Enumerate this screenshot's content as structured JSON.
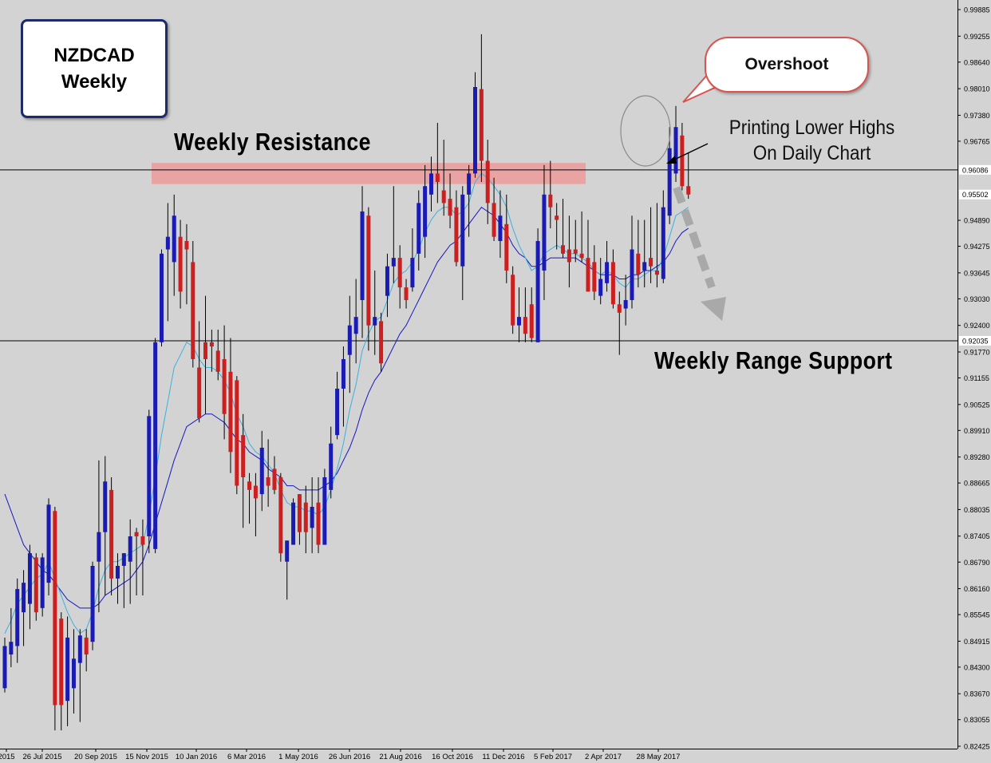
{
  "annotations": {
    "title_line1": "NZDCAD",
    "title_line2": "Weekly",
    "resistance": "Weekly Resistance",
    "support": "Weekly Range Support",
    "overshoot": "Overshoot",
    "lower_highs_line1": "Printing  Lower Highs",
    "lower_highs_line2": "On  Daily Chart"
  },
  "colors": {
    "background": "#d3d3d3",
    "bull_candle": "#1a1ab4",
    "bear_candle": "#cc1f1f",
    "resistance_zone": "#eba0a0",
    "ma_fast": "#3ab0e0",
    "ma_slow": "#1818c0",
    "horizontal_lines": "#000000",
    "callout_border": "#d9534f",
    "forecast_arrow": "#a9a9a9"
  },
  "chart_data": {
    "type": "candlestick",
    "symbol": "NZDCAD",
    "timeframe": "Weekly",
    "ylim": [
      0.82425,
      0.99885
    ],
    "y_ticks": [
      "0.99885",
      "0.99255",
      "0.98640",
      "0.98010",
      "0.97380",
      "0.96765",
      "0.96086",
      "0.95502",
      "0.94890",
      "0.94275",
      "0.93645",
      "0.93030",
      "0.92400",
      "0.91770",
      "0.91155",
      "0.90525",
      "0.89910",
      "0.89280",
      "0.88665",
      "0.88035",
      "0.87405",
      "0.86790",
      "0.86160",
      "0.85545",
      "0.84915",
      "0.84300",
      "0.83670",
      "0.83055",
      "0.82425"
    ],
    "highlighted_price_labels": [
      "0.96086",
      "0.95502",
      "0.92035"
    ],
    "x_tick_labels": [
      "2015",
      "26 Jul 2015",
      "20 Sep 2015",
      "15 Nov 2015",
      "10 Jan 2016",
      "6 Mar 2016",
      "1 May 2016",
      "26 Jun 2016",
      "21 Aug 2016",
      "16 Oct 2016",
      "11 Dec 2016",
      "5 Feb 2017",
      "2 Apr 2017",
      "28 May 2017"
    ],
    "horizontal_levels": [
      0.96086,
      0.92035
    ],
    "resistance_zone": [
      0.9575,
      0.9625
    ],
    "candles": [
      {
        "o": 0.838,
        "h": 0.85,
        "l": 0.837,
        "c": 0.848
      },
      {
        "o": 0.846,
        "h": 0.857,
        "l": 0.843,
        "c": 0.849
      },
      {
        "o": 0.848,
        "h": 0.864,
        "l": 0.844,
        "c": 0.8615
      },
      {
        "o": 0.856,
        "h": 0.866,
        "l": 0.848,
        "c": 0.863
      },
      {
        "o": 0.858,
        "h": 0.872,
        "l": 0.852,
        "c": 0.87
      },
      {
        "o": 0.869,
        "h": 0.87,
        "l": 0.854,
        "c": 0.856
      },
      {
        "o": 0.857,
        "h": 0.87,
        "l": 0.855,
        "c": 0.869
      },
      {
        "o": 0.863,
        "h": 0.883,
        "l": 0.86,
        "c": 0.8815
      },
      {
        "o": 0.88,
        "h": 0.881,
        "l": 0.828,
        "c": 0.834
      },
      {
        "o": 0.8545,
        "h": 0.856,
        "l": 0.828,
        "c": 0.834
      },
      {
        "o": 0.835,
        "h": 0.855,
        "l": 0.829,
        "c": 0.85
      },
      {
        "o": 0.838,
        "h": 0.852,
        "l": 0.832,
        "c": 0.845
      },
      {
        "o": 0.844,
        "h": 0.852,
        "l": 0.83,
        "c": 0.8505
      },
      {
        "o": 0.85,
        "h": 0.852,
        "l": 0.842,
        "c": 0.846
      },
      {
        "o": 0.849,
        "h": 0.868,
        "l": 0.847,
        "c": 0.867
      },
      {
        "o": 0.868,
        "h": 0.892,
        "l": 0.856,
        "c": 0.875
      },
      {
        "o": 0.875,
        "h": 0.893,
        "l": 0.86,
        "c": 0.887
      },
      {
        "o": 0.885,
        "h": 0.888,
        "l": 0.86,
        "c": 0.864
      },
      {
        "o": 0.864,
        "h": 0.87,
        "l": 0.858,
        "c": 0.867
      },
      {
        "o": 0.867,
        "h": 0.87,
        "l": 0.857,
        "c": 0.87
      },
      {
        "o": 0.868,
        "h": 0.878,
        "l": 0.858,
        "c": 0.874
      },
      {
        "o": 0.875,
        "h": 0.876,
        "l": 0.86,
        "c": 0.874
      },
      {
        "o": 0.874,
        "h": 0.878,
        "l": 0.86,
        "c": 0.872
      },
      {
        "o": 0.874,
        "h": 0.904,
        "l": 0.87,
        "c": 0.9025
      },
      {
        "o": 0.871,
        "h": 0.921,
        "l": 0.87,
        "c": 0.92
      },
      {
        "o": 0.92,
        "h": 0.942,
        "l": 0.919,
        "c": 0.941
      },
      {
        "o": 0.942,
        "h": 0.953,
        "l": 0.925,
        "c": 0.945
      },
      {
        "o": 0.939,
        "h": 0.955,
        "l": 0.931,
        "c": 0.95
      },
      {
        "o": 0.945,
        "h": 0.949,
        "l": 0.928,
        "c": 0.932
      },
      {
        "o": 0.944,
        "h": 0.948,
        "l": 0.929,
        "c": 0.942
      },
      {
        "o": 0.939,
        "h": 0.944,
        "l": 0.914,
        "c": 0.916
      },
      {
        "o": 0.914,
        "h": 0.925,
        "l": 0.901,
        "c": 0.902
      },
      {
        "o": 0.92,
        "h": 0.931,
        "l": 0.903,
        "c": 0.916
      },
      {
        "o": 0.92,
        "h": 0.923,
        "l": 0.913,
        "c": 0.919
      },
      {
        "o": 0.918,
        "h": 0.923,
        "l": 0.911,
        "c": 0.913
      },
      {
        "o": 0.916,
        "h": 0.924,
        "l": 0.897,
        "c": 0.903
      },
      {
        "o": 0.913,
        "h": 0.921,
        "l": 0.889,
        "c": 0.894
      },
      {
        "o": 0.911,
        "h": 0.912,
        "l": 0.884,
        "c": 0.886
      },
      {
        "o": 0.898,
        "h": 0.903,
        "l": 0.876,
        "c": 0.888
      },
      {
        "o": 0.887,
        "h": 0.889,
        "l": 0.877,
        "c": 0.885
      },
      {
        "o": 0.886,
        "h": 0.889,
        "l": 0.874,
        "c": 0.883
      },
      {
        "o": 0.884,
        "h": 0.899,
        "l": 0.88,
        "c": 0.895
      },
      {
        "o": 0.888,
        "h": 0.897,
        "l": 0.881,
        "c": 0.886
      },
      {
        "o": 0.89,
        "h": 0.893,
        "l": 0.884,
        "c": 0.885
      },
      {
        "o": 0.888,
        "h": 0.889,
        "l": 0.868,
        "c": 0.87
      },
      {
        "o": 0.868,
        "h": 0.873,
        "l": 0.859,
        "c": 0.873
      },
      {
        "o": 0.872,
        "h": 0.883,
        "l": 0.872,
        "c": 0.882
      },
      {
        "o": 0.884,
        "h": 0.884,
        "l": 0.872,
        "c": 0.875
      },
      {
        "o": 0.882,
        "h": 0.886,
        "l": 0.87,
        "c": 0.875
      },
      {
        "o": 0.876,
        "h": 0.888,
        "l": 0.87,
        "c": 0.881
      },
      {
        "o": 0.882,
        "h": 0.888,
        "l": 0.87,
        "c": 0.872
      },
      {
        "o": 0.872,
        "h": 0.89,
        "l": 0.872,
        "c": 0.888
      },
      {
        "o": 0.885,
        "h": 0.9,
        "l": 0.883,
        "c": 0.896
      },
      {
        "o": 0.898,
        "h": 0.913,
        "l": 0.897,
        "c": 0.909
      },
      {
        "o": 0.909,
        "h": 0.919,
        "l": 0.9,
        "c": 0.916
      },
      {
        "o": 0.917,
        "h": 0.931,
        "l": 0.908,
        "c": 0.924
      },
      {
        "o": 0.922,
        "h": 0.935,
        "l": 0.915,
        "c": 0.926
      },
      {
        "o": 0.93,
        "h": 0.957,
        "l": 0.921,
        "c": 0.951
      },
      {
        "o": 0.95,
        "h": 0.952,
        "l": 0.918,
        "c": 0.924
      },
      {
        "o": 0.924,
        "h": 0.937,
        "l": 0.917,
        "c": 0.926
      },
      {
        "o": 0.925,
        "h": 0.927,
        "l": 0.913,
        "c": 0.915
      },
      {
        "o": 0.931,
        "h": 0.941,
        "l": 0.926,
        "c": 0.938
      },
      {
        "o": 0.938,
        "h": 0.957,
        "l": 0.934,
        "c": 0.94
      },
      {
        "o": 0.94,
        "h": 0.943,
        "l": 0.928,
        "c": 0.933
      },
      {
        "o": 0.933,
        "h": 0.935,
        "l": 0.928,
        "c": 0.93
      },
      {
        "o": 0.933,
        "h": 0.947,
        "l": 0.932,
        "c": 0.94
      },
      {
        "o": 0.941,
        "h": 0.956,
        "l": 0.937,
        "c": 0.953
      },
      {
        "o": 0.945,
        "h": 0.962,
        "l": 0.94,
        "c": 0.957
      },
      {
        "o": 0.955,
        "h": 0.964,
        "l": 0.951,
        "c": 0.96
      },
      {
        "o": 0.96,
        "h": 0.972,
        "l": 0.953,
        "c": 0.958
      },
      {
        "o": 0.956,
        "h": 0.968,
        "l": 0.95,
        "c": 0.953
      },
      {
        "o": 0.954,
        "h": 0.96,
        "l": 0.947,
        "c": 0.95
      },
      {
        "o": 0.952,
        "h": 0.956,
        "l": 0.938,
        "c": 0.939
      },
      {
        "o": 0.938,
        "h": 0.957,
        "l": 0.93,
        "c": 0.955
      },
      {
        "o": 0.955,
        "h": 0.962,
        "l": 0.945,
        "c": 0.96
      },
      {
        "o": 0.96,
        "h": 0.984,
        "l": 0.959,
        "c": 0.9805
      },
      {
        "o": 0.98,
        "h": 0.993,
        "l": 0.958,
        "c": 0.963
      },
      {
        "o": 0.963,
        "h": 0.968,
        "l": 0.948,
        "c": 0.953
      },
      {
        "o": 0.953,
        "h": 0.959,
        "l": 0.944,
        "c": 0.945
      },
      {
        "o": 0.944,
        "h": 0.956,
        "l": 0.94,
        "c": 0.95
      },
      {
        "o": 0.948,
        "h": 0.955,
        "l": 0.934,
        "c": 0.937
      },
      {
        "o": 0.936,
        "h": 0.938,
        "l": 0.922,
        "c": 0.924
      },
      {
        "o": 0.924,
        "h": 0.933,
        "l": 0.92,
        "c": 0.926
      },
      {
        "o": 0.926,
        "h": 0.933,
        "l": 0.92,
        "c": 0.922
      },
      {
        "o": 0.929,
        "h": 0.933,
        "l": 0.92,
        "c": 0.921
      },
      {
        "o": 0.92,
        "h": 0.947,
        "l": 0.92,
        "c": 0.944
      },
      {
        "o": 0.937,
        "h": 0.962,
        "l": 0.93,
        "c": 0.955
      },
      {
        "o": 0.955,
        "h": 0.963,
        "l": 0.947,
        "c": 0.952
      },
      {
        "o": 0.95,
        "h": 0.953,
        "l": 0.942,
        "c": 0.949
      },
      {
        "o": 0.943,
        "h": 0.954,
        "l": 0.94,
        "c": 0.941
      },
      {
        "o": 0.942,
        "h": 0.95,
        "l": 0.933,
        "c": 0.939
      },
      {
        "o": 0.942,
        "h": 0.949,
        "l": 0.939,
        "c": 0.941
      },
      {
        "o": 0.941,
        "h": 0.951,
        "l": 0.939,
        "c": 0.94
      },
      {
        "o": 0.94,
        "h": 0.949,
        "l": 0.932,
        "c": 0.932
      },
      {
        "o": 0.939,
        "h": 0.943,
        "l": 0.93,
        "c": 0.932
      },
      {
        "o": 0.931,
        "h": 0.94,
        "l": 0.929,
        "c": 0.935
      },
      {
        "o": 0.934,
        "h": 0.944,
        "l": 0.932,
        "c": 0.939
      },
      {
        "o": 0.939,
        "h": 0.942,
        "l": 0.928,
        "c": 0.929
      },
      {
        "o": 0.929,
        "h": 0.932,
        "l": 0.917,
        "c": 0.927
      },
      {
        "o": 0.928,
        "h": 0.936,
        "l": 0.924,
        "c": 0.93
      },
      {
        "o": 0.93,
        "h": 0.95,
        "l": 0.928,
        "c": 0.942
      },
      {
        "o": 0.941,
        "h": 0.949,
        "l": 0.933,
        "c": 0.936
      },
      {
        "o": 0.937,
        "h": 0.949,
        "l": 0.933,
        "c": 0.939
      },
      {
        "o": 0.94,
        "h": 0.952,
        "l": 0.934,
        "c": 0.938
      },
      {
        "o": 0.937,
        "h": 0.953,
        "l": 0.933,
        "c": 0.936
      },
      {
        "o": 0.935,
        "h": 0.956,
        "l": 0.934,
        "c": 0.952
      },
      {
        "o": 0.95,
        "h": 0.971,
        "l": 0.948,
        "c": 0.966
      },
      {
        "o": 0.96,
        "h": 0.976,
        "l": 0.958,
        "c": 0.971
      },
      {
        "o": 0.969,
        "h": 0.972,
        "l": 0.956,
        "c": 0.957
      },
      {
        "o": 0.957,
        "h": 0.965,
        "l": 0.954,
        "c": 0.955
      }
    ],
    "ma_fast": [
      0.851,
      0.854,
      0.858,
      0.86,
      0.862,
      0.864,
      0.865,
      0.868,
      0.864,
      0.86,
      0.856,
      0.853,
      0.851,
      0.852,
      0.856,
      0.862,
      0.866,
      0.868,
      0.868,
      0.869,
      0.87,
      0.871,
      0.872,
      0.879,
      0.888,
      0.898,
      0.906,
      0.914,
      0.917,
      0.92,
      0.919,
      0.916,
      0.914,
      0.914,
      0.913,
      0.911,
      0.908,
      0.903,
      0.9,
      0.896,
      0.894,
      0.893,
      0.891,
      0.889,
      0.885,
      0.882,
      0.881,
      0.881,
      0.88,
      0.88,
      0.879,
      0.881,
      0.885,
      0.89,
      0.896,
      0.904,
      0.91,
      0.918,
      0.922,
      0.925,
      0.926,
      0.93,
      0.934,
      0.936,
      0.937,
      0.939,
      0.942,
      0.946,
      0.949,
      0.951,
      0.952,
      0.952,
      0.95,
      0.951,
      0.953,
      0.958,
      0.96,
      0.959,
      0.957,
      0.955,
      0.952,
      0.947,
      0.943,
      0.94,
      0.937,
      0.938,
      0.941,
      0.942,
      0.943,
      0.942,
      0.941,
      0.941,
      0.94,
      0.939,
      0.937,
      0.936,
      0.937,
      0.936,
      0.934,
      0.933,
      0.935,
      0.935,
      0.936,
      0.937,
      0.937,
      0.94,
      0.945,
      0.95,
      0.951,
      0.952
    ],
    "ma_slow": [
      0.884,
      0.88,
      0.876,
      0.872,
      0.87,
      0.868,
      0.866,
      0.865,
      0.863,
      0.861,
      0.859,
      0.858,
      0.857,
      0.857,
      0.857,
      0.858,
      0.86,
      0.861,
      0.862,
      0.863,
      0.864,
      0.866,
      0.868,
      0.872,
      0.877,
      0.882,
      0.887,
      0.892,
      0.896,
      0.9,
      0.901,
      0.902,
      0.903,
      0.903,
      0.902,
      0.901,
      0.899,
      0.897,
      0.896,
      0.894,
      0.893,
      0.892,
      0.89,
      0.889,
      0.888,
      0.886,
      0.886,
      0.885,
      0.885,
      0.885,
      0.885,
      0.886,
      0.887,
      0.889,
      0.892,
      0.895,
      0.899,
      0.904,
      0.908,
      0.911,
      0.913,
      0.916,
      0.919,
      0.922,
      0.924,
      0.927,
      0.93,
      0.933,
      0.936,
      0.939,
      0.941,
      0.943,
      0.944,
      0.946,
      0.948,
      0.95,
      0.952,
      0.951,
      0.95,
      0.948,
      0.946,
      0.943,
      0.941,
      0.94,
      0.938,
      0.938,
      0.939,
      0.94,
      0.94,
      0.94,
      0.94,
      0.94,
      0.939,
      0.938,
      0.937,
      0.936,
      0.936,
      0.936,
      0.935,
      0.935,
      0.936,
      0.936,
      0.937,
      0.937,
      0.938,
      0.939,
      0.941,
      0.944,
      0.946,
      0.947
    ]
  }
}
